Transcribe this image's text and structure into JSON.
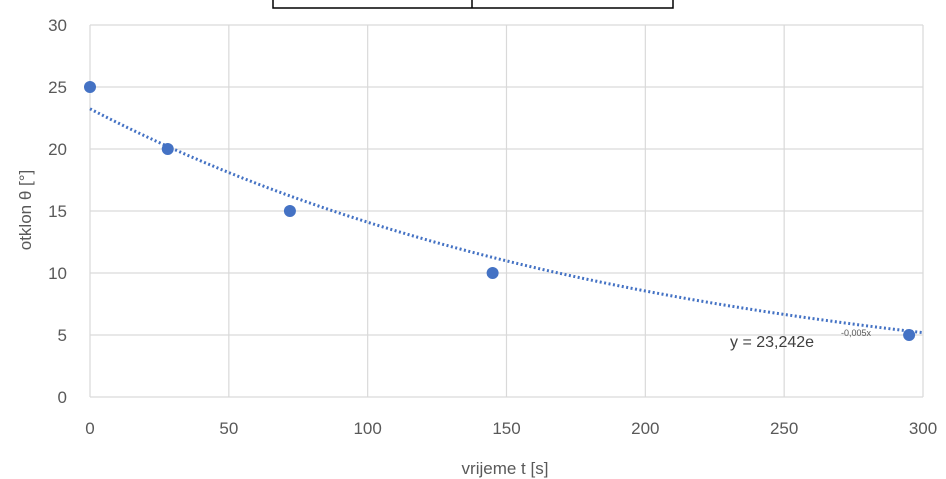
{
  "chart_data": {
    "type": "scatter",
    "title": "",
    "xlabel": "vrijeme t [s]",
    "ylabel": "otklon θ [°]",
    "xlim": [
      0,
      300
    ],
    "ylim": [
      0,
      30
    ],
    "x_ticks": [
      "0",
      "50",
      "100",
      "150",
      "200",
      "250",
      "300"
    ],
    "y_ticks": [
      "0",
      "5",
      "10",
      "15",
      "20",
      "25",
      "30"
    ],
    "grid": true,
    "series": [
      {
        "points": [
          {
            "x": 0,
            "y": 25
          },
          {
            "x": 28,
            "y": 20
          },
          {
            "x": 72,
            "y": 15
          },
          {
            "x": 145,
            "y": 10
          },
          {
            "x": 295,
            "y": 5
          }
        ],
        "color": "#4472C4"
      }
    ],
    "trendline": {
      "type": "exponential",
      "a": 23.242,
      "b": -0.005,
      "equation_base": "y = 23,242e",
      "equation_exponent": "-0,005x",
      "color": "#4472C4",
      "style": "dotted"
    }
  }
}
